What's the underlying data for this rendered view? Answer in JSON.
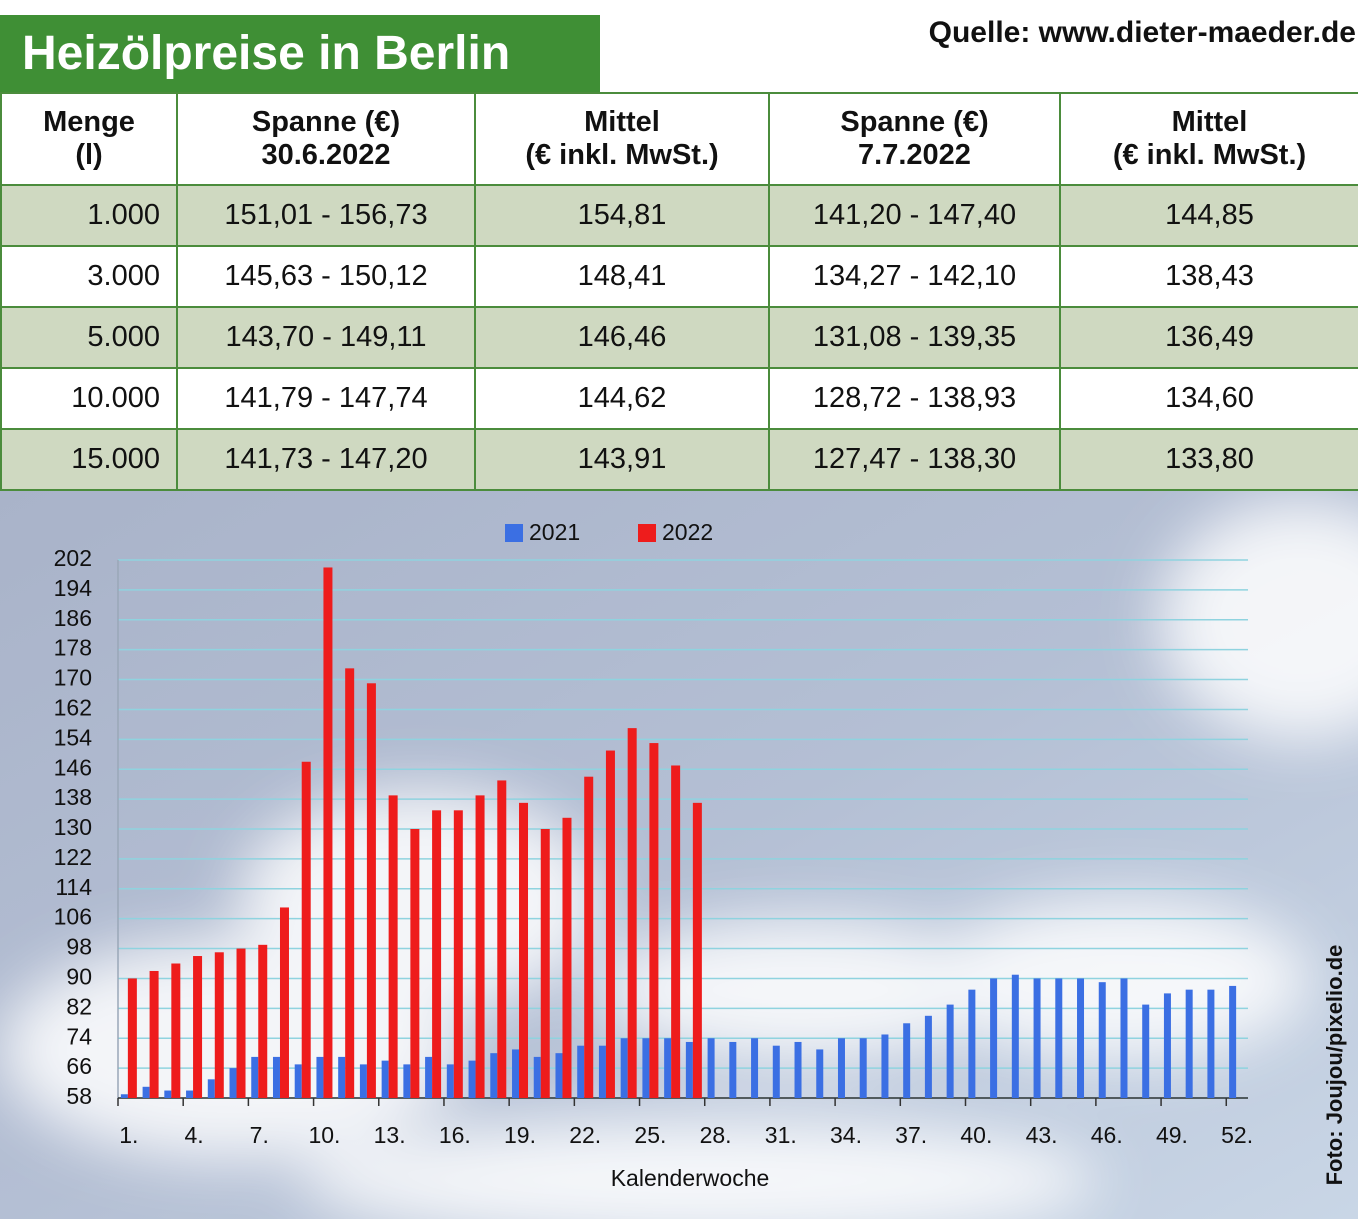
{
  "header": {
    "title": "Heizölpreise in Berlin",
    "source": "Quelle: www.dieter-maeder.de"
  },
  "table": {
    "headers": [
      [
        "Menge",
        "(l)"
      ],
      [
        "Spanne (€)",
        "30.6.2022"
      ],
      [
        "Mittel",
        "(€ inkl. MwSt.)"
      ],
      [
        "Spanne (€)",
        "7.7.2022"
      ],
      [
        "Mittel",
        "(€ inkl. MwSt.)"
      ]
    ],
    "rows": [
      [
        "1.000",
        "151,01 - 156,73",
        "154,81",
        "141,20 - 147,40",
        "144,85"
      ],
      [
        "3.000",
        "145,63 - 150,12",
        "148,41",
        "134,27 - 142,10",
        "138,43"
      ],
      [
        "5.000",
        "143,70 - 149,11",
        "146,46",
        "131,08 - 139,35",
        "136,49"
      ],
      [
        "10.000",
        "141,79 - 147,74",
        "144,62",
        "128,72 - 138,93",
        "134,60"
      ],
      [
        "15.000",
        "141,73 - 147,20",
        "143,91",
        "127,47 - 138,30",
        "133,80"
      ]
    ]
  },
  "chart_data": {
    "type": "bar",
    "x_label": "Kalenderwoche",
    "credit": "Foto: Joujou/pixelio.de",
    "categories": [
      "1.",
      null,
      null,
      "4.",
      null,
      null,
      "7.",
      null,
      null,
      "10.",
      null,
      null,
      "13.",
      null,
      null,
      "16.",
      null,
      null,
      "19.",
      null,
      null,
      "22.",
      null,
      null,
      "25.",
      null,
      null,
      "28.",
      null,
      null,
      "31.",
      null,
      null,
      "34.",
      null,
      null,
      "37.",
      null,
      null,
      "40.",
      null,
      null,
      "43.",
      null,
      null,
      "46.",
      null,
      null,
      "49.",
      null,
      null,
      "52."
    ],
    "series": [
      {
        "name": "2021",
        "color": "#3b6fe3",
        "values": [
          59,
          61,
          60,
          60,
          63,
          66,
          69,
          69,
          67,
          69,
          69,
          67,
          68,
          67,
          69,
          67,
          68,
          70,
          71,
          69,
          70,
          72,
          72,
          74,
          74,
          74,
          73,
          74,
          73,
          74,
          72,
          73,
          71,
          74,
          74,
          75,
          78,
          80,
          83,
          87,
          90,
          91,
          90,
          90,
          90,
          89,
          90,
          83,
          86,
          87,
          87,
          88
        ]
      },
      {
        "name": "2022",
        "color": "#ee1c1c",
        "values": [
          90,
          92,
          94,
          96,
          97,
          98,
          99,
          109,
          148,
          200,
          173,
          169,
          139,
          130,
          135,
          135,
          139,
          143,
          137,
          130,
          133,
          144,
          151,
          157,
          153,
          147,
          137,
          null,
          null,
          null,
          null,
          null,
          null,
          null,
          null,
          null,
          null,
          null,
          null,
          null,
          null,
          null,
          null,
          null,
          null,
          null,
          null,
          null,
          null,
          null,
          null,
          null
        ]
      }
    ],
    "ylim": [
      58,
      202
    ],
    "yticks": [
      58,
      66,
      74,
      82,
      90,
      98,
      106,
      114,
      122,
      130,
      138,
      146,
      154,
      162,
      170,
      178,
      186,
      194,
      202
    ],
    "grid": true
  }
}
